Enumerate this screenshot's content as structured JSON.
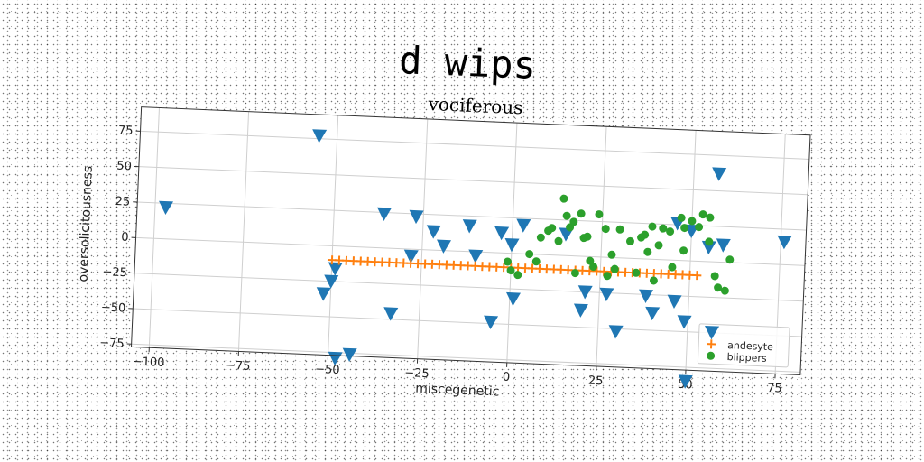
{
  "chart_data": {
    "type": "scatter",
    "title": "d wips",
    "subtitle": "vociferous",
    "xlabel": "miscegenetic",
    "ylabel": "oversolicitousness",
    "xlim": [
      -105,
      82
    ],
    "ylim": [
      -77,
      92
    ],
    "x_ticks": [
      -100,
      -75,
      -50,
      -25,
      0,
      25,
      50,
      75
    ],
    "x_tick_labels": [
      "−100",
      "−75",
      "−50",
      "−25",
      "0",
      "25",
      "50",
      "75"
    ],
    "y_ticks": [
      -75,
      -50,
      -25,
      0,
      25,
      50,
      75
    ],
    "y_tick_labels": [
      "−75",
      "−50",
      "−25",
      "0",
      "25",
      "50",
      "75"
    ],
    "grid": true,
    "legend_position": "lower-right",
    "series": [
      {
        "name": "",
        "marker": "triangle-down",
        "color": "#1f77b4",
        "points": [
          [
            -97,
            22
          ],
          [
            -55,
            77
          ],
          [
            -52,
            -34
          ],
          [
            -49,
            -16
          ],
          [
            -50,
            -25
          ],
          [
            -48,
            -79
          ],
          [
            -44,
            -76
          ],
          [
            -36,
            24
          ],
          [
            -33,
            -46
          ],
          [
            -28,
            -5
          ],
          [
            -27,
            23
          ],
          [
            -22,
            13
          ],
          [
            -19,
            3
          ],
          [
            -12,
            18
          ],
          [
            -10,
            -3
          ],
          [
            -5,
            -49
          ],
          [
            -3,
            14
          ],
          [
            0,
            6
          ],
          [
            1,
            -32
          ],
          [
            3,
            20
          ],
          [
            15,
            15
          ],
          [
            20,
            -38
          ],
          [
            21,
            -25
          ],
          [
            27,
            -26
          ],
          [
            30,
            -52
          ],
          [
            38,
            -26
          ],
          [
            40,
            -38
          ],
          [
            46,
            26
          ],
          [
            46,
            -29
          ],
          [
            49,
            -43
          ],
          [
            50,
            21
          ],
          [
            50,
            -85
          ],
          [
            55,
            10
          ],
          [
            57,
            62
          ],
          [
            59,
            12
          ],
          [
            76,
            16
          ]
        ]
      },
      {
        "name": "andesyte",
        "marker": "plus",
        "color": "#ff7f0e",
        "points": [
          [
            -50,
            -10
          ],
          [
            -48,
            -10
          ],
          [
            -46,
            -10
          ],
          [
            -44,
            -10
          ],
          [
            -42,
            -10
          ],
          [
            -40,
            -10
          ],
          [
            -38,
            -10
          ],
          [
            -36,
            -10
          ],
          [
            -34,
            -10
          ],
          [
            -32,
            -10
          ],
          [
            -30,
            -10
          ],
          [
            -28,
            -10
          ],
          [
            -26,
            -10
          ],
          [
            -24,
            -10
          ],
          [
            -22,
            -10
          ],
          [
            -20,
            -10
          ],
          [
            -18,
            -10
          ],
          [
            -16,
            -10
          ],
          [
            -14,
            -10
          ],
          [
            -12,
            -10
          ],
          [
            -10,
            -10
          ],
          [
            -8,
            -10
          ],
          [
            -6,
            -10
          ],
          [
            -4,
            -10
          ],
          [
            -2,
            -10
          ],
          [
            0,
            -10
          ],
          [
            2,
            -10
          ],
          [
            4,
            -10
          ],
          [
            6,
            -10
          ],
          [
            8,
            -10
          ],
          [
            10,
            -10
          ],
          [
            12,
            -10
          ],
          [
            14,
            -10
          ],
          [
            16,
            -10
          ],
          [
            18,
            -10
          ],
          [
            20,
            -10
          ],
          [
            22,
            -10
          ],
          [
            24,
            -10
          ],
          [
            26,
            -10
          ],
          [
            28,
            -10
          ],
          [
            30,
            -10
          ],
          [
            32,
            -10
          ],
          [
            34,
            -10
          ],
          [
            36,
            -10
          ],
          [
            38,
            -10
          ],
          [
            40,
            -10
          ],
          [
            42,
            -10
          ],
          [
            44,
            -10
          ],
          [
            46,
            -10
          ],
          [
            48,
            -10
          ],
          [
            50,
            -10
          ],
          [
            52,
            -10
          ]
        ]
      },
      {
        "name": "blippers",
        "marker": "circle",
        "color": "#2ca02c",
        "points": [
          [
            -1,
            -6
          ],
          [
            0,
            -12
          ],
          [
            2,
            -15
          ],
          [
            5,
            0
          ],
          [
            7,
            -5
          ],
          [
            8,
            12
          ],
          [
            10,
            17
          ],
          [
            11,
            19
          ],
          [
            13,
            10
          ],
          [
            14,
            40
          ],
          [
            15,
            28
          ],
          [
            16,
            20
          ],
          [
            17,
            24
          ],
          [
            18,
            -12
          ],
          [
            19,
            30
          ],
          [
            20,
            13
          ],
          [
            21,
            14
          ],
          [
            22,
            -3
          ],
          [
            23,
            -7
          ],
          [
            24,
            30
          ],
          [
            26,
            20
          ],
          [
            27,
            -13
          ],
          [
            28,
            2
          ],
          [
            29,
            -8
          ],
          [
            30,
            20
          ],
          [
            33,
            12
          ],
          [
            35,
            -10
          ],
          [
            36,
            15
          ],
          [
            37,
            17
          ],
          [
            38,
            5
          ],
          [
            39,
            23
          ],
          [
            40,
            -15
          ],
          [
            41,
            10
          ],
          [
            42,
            22
          ],
          [
            44,
            20
          ],
          [
            45,
            -5
          ],
          [
            47,
            30
          ],
          [
            48,
            23
          ],
          [
            48,
            7
          ],
          [
            50,
            28
          ],
          [
            52,
            24
          ],
          [
            53,
            33
          ],
          [
            55,
            31
          ],
          [
            55,
            14
          ],
          [
            57,
            -10
          ],
          [
            58,
            -18
          ],
          [
            60,
            -20
          ],
          [
            61,
            2
          ]
        ]
      }
    ]
  }
}
